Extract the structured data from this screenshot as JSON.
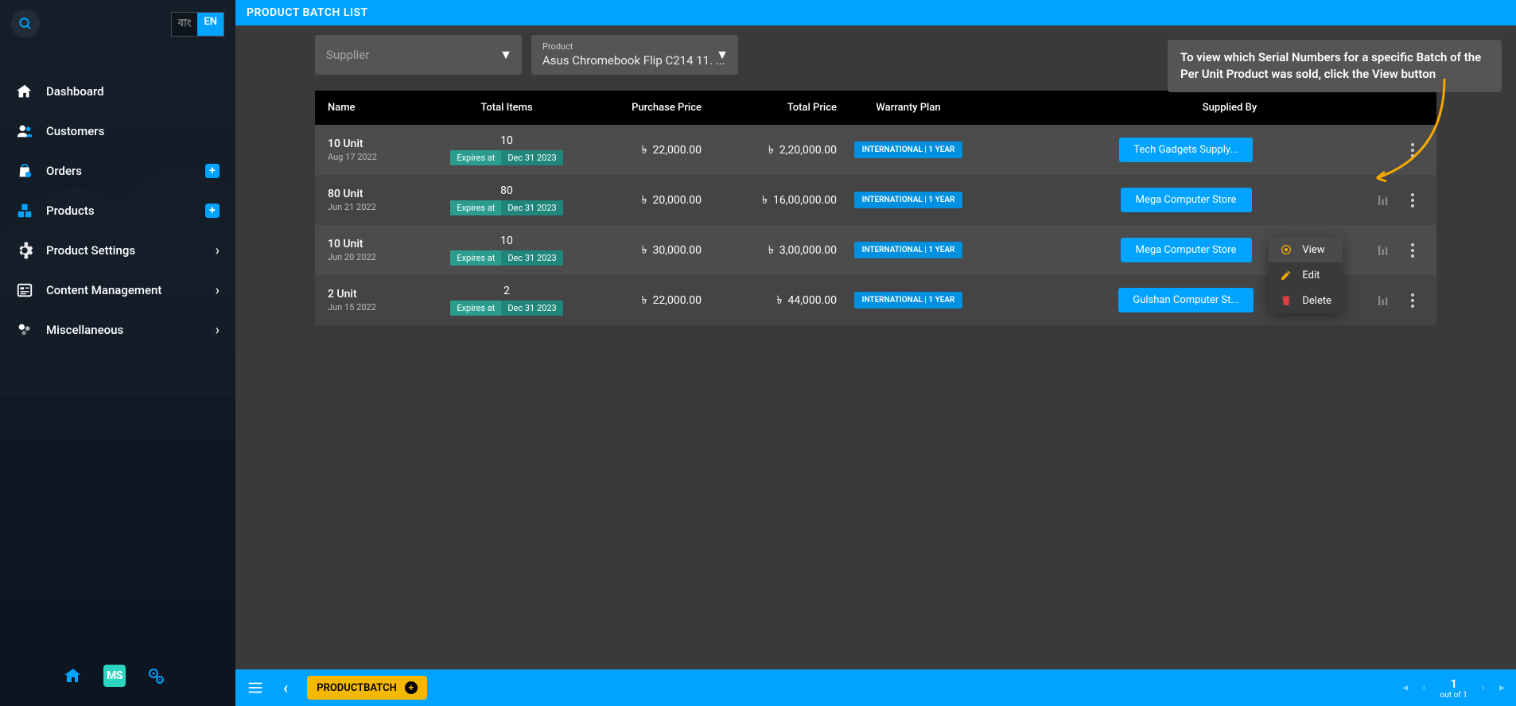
{
  "colors": {
    "primary": "#00a3ff",
    "sidebar_overlay": "#152535",
    "main_bg": "#3a3a3a",
    "table_bg": "#444444",
    "table_row_alt": "#4c4c4c",
    "table_header_bg": "#000000",
    "warranty_badge": "#0090e0",
    "supplier_btn": "#00a3ff",
    "expiry_label": "#2a9d8f",
    "expiry_date": "#21867a",
    "breadcrumb": "#f5b800",
    "tooltip_bg": "#555555",
    "filter_bg": "#555555",
    "ms_badge": "#2dd4bf"
  },
  "language": {
    "inactive": "বাং",
    "active": "EN"
  },
  "sidebar": {
    "items": [
      {
        "label": "Dashboard",
        "icon": "home"
      },
      {
        "label": "Customers",
        "icon": "users"
      },
      {
        "label": "Orders",
        "icon": "bag",
        "plus": true
      },
      {
        "label": "Products",
        "icon": "blocks",
        "plus": true
      },
      {
        "label": "Product Settings",
        "icon": "gear",
        "chevron": true
      },
      {
        "label": "Content Management",
        "icon": "content",
        "chevron": true
      },
      {
        "label": "Miscellaneous",
        "icon": "misc",
        "chevron": true
      }
    ]
  },
  "header": {
    "title": "PRODUCT BATCH LIST"
  },
  "filters": {
    "supplier": {
      "placeholder": "Supplier"
    },
    "product": {
      "label": "Product",
      "value": "Asus Chromebook Flip C214 11. ..."
    }
  },
  "tooltip": "To view which Serial Numbers for a specific Batch of the Per Unit Product was sold, click the View button",
  "table": {
    "headers": {
      "name": "Name",
      "total_items": "Total Items",
      "purchase_price": "Purchase Price",
      "total_price": "Total Price",
      "warranty": "Warranty Plan",
      "supplied_by": "Supplied By"
    },
    "currency_symbol": "৳",
    "expires_label": "Expires at",
    "rows": [
      {
        "unit": "10 Unit",
        "date": "Aug 17 2022",
        "count": "10",
        "expiry": "Dec 31 2023",
        "pprice": "22,000.00",
        "tprice": "2,20,000.00",
        "warranty": "INTERNATIONAL | 1 YEAR",
        "supplier": "Tech Gadgets Supply...",
        "menu_open": true
      },
      {
        "unit": "80 Unit",
        "date": "Jun 21 2022",
        "count": "80",
        "expiry": "Dec 31 2023",
        "pprice": "20,000.00",
        "tprice": "16,00,000.00",
        "warranty": "INTERNATIONAL | 1 YEAR",
        "supplier": "Mega Computer Store"
      },
      {
        "unit": "10 Unit",
        "date": "Jun 20 2022",
        "count": "10",
        "expiry": "Dec 31 2023",
        "pprice": "30,000.00",
        "tprice": "3,00,000.00",
        "warranty": "INTERNATIONAL | 1 YEAR",
        "supplier": "Mega Computer Store"
      },
      {
        "unit": "2 Unit",
        "date": "Jun 15 2022",
        "count": "2",
        "expiry": "Dec 31 2023",
        "pprice": "22,000.00",
        "tprice": "44,000.00",
        "warranty": "INTERNATIONAL | 1 YEAR",
        "supplier": "Gulshan Computer St..."
      }
    ]
  },
  "context_menu": {
    "view": "View",
    "edit": "Edit",
    "delete": "Delete"
  },
  "bottom": {
    "breadcrumb": "PRODUCTBATCH",
    "page": "1",
    "page_sub": "out of 1"
  }
}
